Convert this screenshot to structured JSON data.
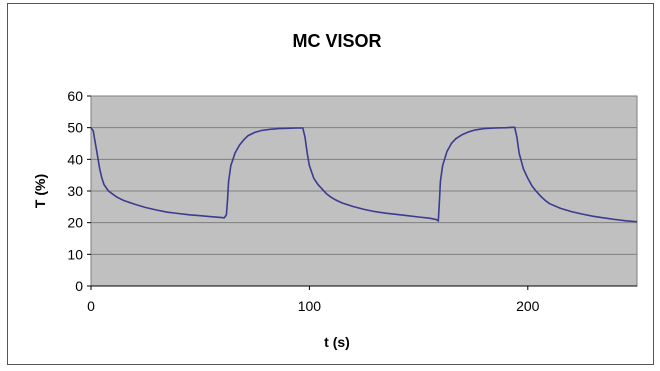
{
  "chart_data": {
    "type": "line",
    "title": "MC VISOR",
    "xlabel": "t (s)",
    "ylabel": "T (%)",
    "xlim": [
      0,
      250
    ],
    "ylim": [
      0,
      60
    ],
    "xticks": [
      0,
      100,
      200
    ],
    "yticks": [
      0,
      10,
      20,
      30,
      40,
      50,
      60
    ],
    "grid": "horizontal",
    "colors": {
      "plot_area": "#c0c0c0",
      "line": "#3b3b8f",
      "grid": "#7f7f7f"
    },
    "series": [
      {
        "x": [
          0,
          1,
          2,
          3,
          4,
          5,
          6,
          8,
          10,
          12,
          15,
          20,
          25,
          30,
          35,
          40,
          45,
          50,
          55,
          60,
          61,
          62,
          62.5,
          63,
          64,
          66,
          68,
          70,
          72,
          75,
          78,
          82,
          86,
          90,
          94,
          97,
          98,
          99,
          100,
          102,
          104,
          106,
          108,
          110,
          112,
          115,
          120,
          125,
          130,
          135,
          140,
          145,
          150,
          155,
          158,
          159,
          159.5,
          160,
          161,
          163,
          165,
          167,
          170,
          173,
          176,
          180,
          185,
          190,
          193,
          194,
          195,
          196,
          198,
          200,
          202,
          204,
          206,
          208,
          210,
          215,
          220,
          225,
          230,
          235,
          240,
          245,
          250
        ],
        "y": [
          50,
          49,
          45,
          41,
          37,
          34,
          32,
          30,
          29,
          28,
          27,
          25.8,
          24.8,
          24,
          23.3,
          22.9,
          22.5,
          22.2,
          21.9,
          21.6,
          21.5,
          22.5,
          27,
          33,
          38,
          42,
          44.5,
          46.2,
          47.5,
          48.5,
          49.1,
          49.5,
          49.7,
          49.8,
          49.9,
          49.9,
          47,
          42,
          38,
          34,
          32,
          30.5,
          29,
          28,
          27.2,
          26.2,
          25.1,
          24.2,
          23.5,
          23,
          22.6,
          22.2,
          21.8,
          21.4,
          21,
          20.6,
          26,
          33,
          38,
          42.5,
          45,
          46.5,
          47.8,
          48.7,
          49.3,
          49.7,
          49.9,
          50,
          50.1,
          50.1,
          47,
          42,
          37,
          34,
          31.5,
          29.8,
          28.3,
          27,
          26,
          24.5,
          23.5,
          22.7,
          22,
          21.5,
          21,
          20.6,
          20.3
        ]
      }
    ]
  }
}
